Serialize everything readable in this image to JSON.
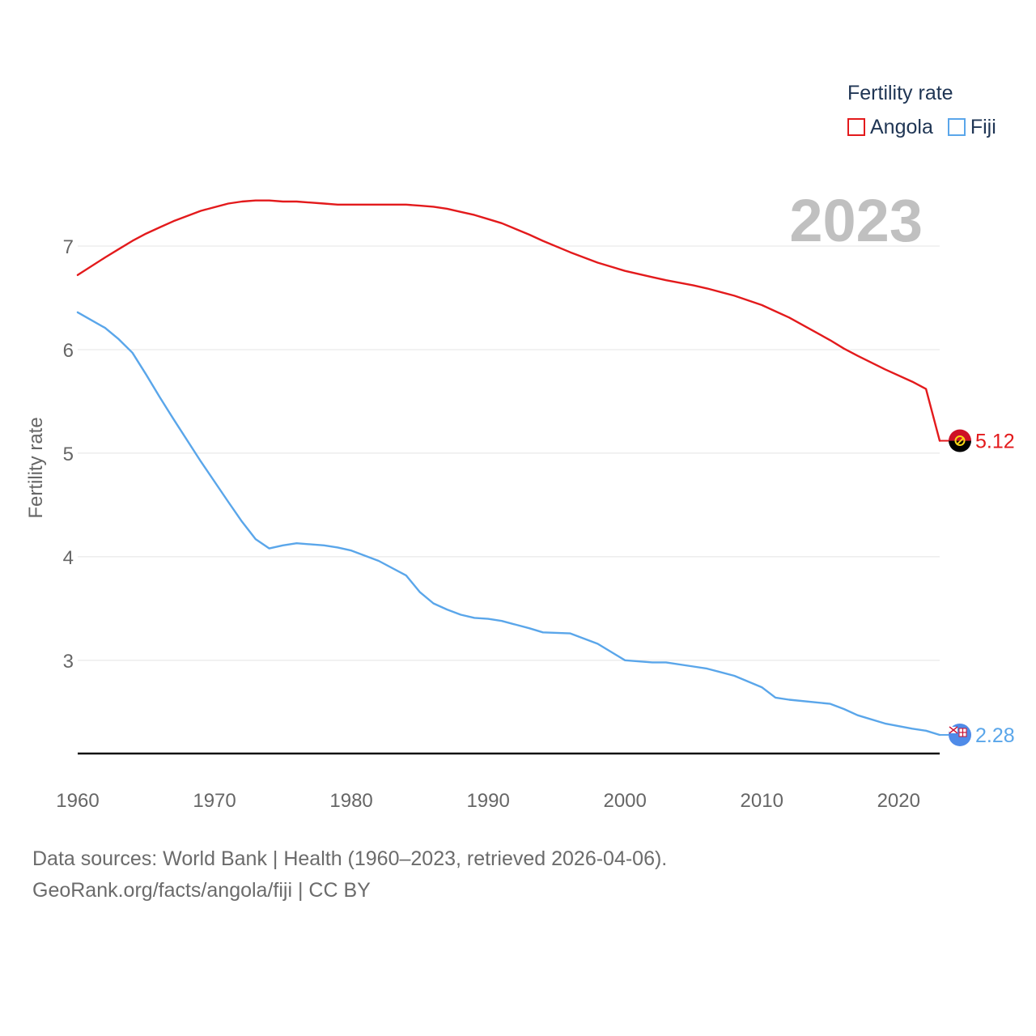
{
  "legend": {
    "title": "Fertility rate",
    "items": [
      {
        "label": "Angola",
        "color": "#e31a1c"
      },
      {
        "label": "Fiji",
        "color": "#5aa6ea"
      }
    ]
  },
  "current_year": "2023",
  "source": {
    "line1": "Data sources: World Bank | Health (1960–2023, retrieved 2026-04-06).",
    "line2": "GeoRank.org/facts/angola/fiji | CC BY"
  },
  "chart_data": {
    "type": "line",
    "title": "Fertility rate",
    "xlabel": "",
    "ylabel": "Fertility rate",
    "xlim": [
      1960,
      2023
    ],
    "ylim": [
      2.1,
      7.5
    ],
    "yticks": [
      3,
      4,
      5,
      6,
      7
    ],
    "xticks": [
      1960,
      1970,
      1980,
      1990,
      2000,
      2010,
      2020
    ],
    "grid": true,
    "legend_position": "top-right",
    "x": [
      1960,
      1962,
      1963,
      1964,
      1965,
      1966,
      1967,
      1969,
      1971,
      1972,
      1973,
      1974,
      1975,
      1976,
      1978,
      1979,
      1980,
      1982,
      1984,
      1985,
      1986,
      1987,
      1988,
      1989,
      1990,
      1991,
      1993,
      1994,
      1996,
      1998,
      2000,
      2002,
      2003,
      2005,
      2006,
      2008,
      2010,
      2011,
      2012,
      2015,
      2016,
      2017,
      2019,
      2021,
      2022,
      2023
    ],
    "series": [
      {
        "name": "Angola",
        "color": "#e31a1c",
        "end_label": "5.12",
        "values": [
          6.72,
          6.89,
          6.97,
          7.05,
          7.12,
          7.18,
          7.24,
          7.34,
          7.41,
          7.43,
          7.44,
          7.44,
          7.43,
          7.43,
          7.41,
          7.4,
          7.4,
          7.4,
          7.4,
          7.39,
          7.38,
          7.36,
          7.33,
          7.3,
          7.26,
          7.22,
          7.11,
          7.05,
          6.94,
          6.84,
          6.76,
          6.7,
          6.67,
          6.62,
          6.59,
          6.52,
          6.43,
          6.37,
          6.31,
          6.09,
          6.01,
          5.94,
          5.81,
          5.69,
          5.62,
          5.12
        ]
      },
      {
        "name": "Fiji",
        "color": "#5aa6ea",
        "end_label": "2.28",
        "values": [
          6.36,
          6.21,
          6.1,
          5.97,
          5.76,
          5.54,
          5.33,
          4.92,
          4.53,
          4.34,
          4.17,
          4.08,
          4.11,
          4.13,
          4.11,
          4.09,
          4.06,
          3.96,
          3.82,
          3.66,
          3.55,
          3.49,
          3.44,
          3.41,
          3.4,
          3.38,
          3.31,
          3.27,
          3.26,
          3.16,
          3.0,
          2.98,
          2.98,
          2.94,
          2.92,
          2.85,
          2.74,
          2.64,
          2.62,
          2.58,
          2.53,
          2.47,
          2.39,
          2.34,
          2.32,
          2.28
        ]
      }
    ]
  }
}
